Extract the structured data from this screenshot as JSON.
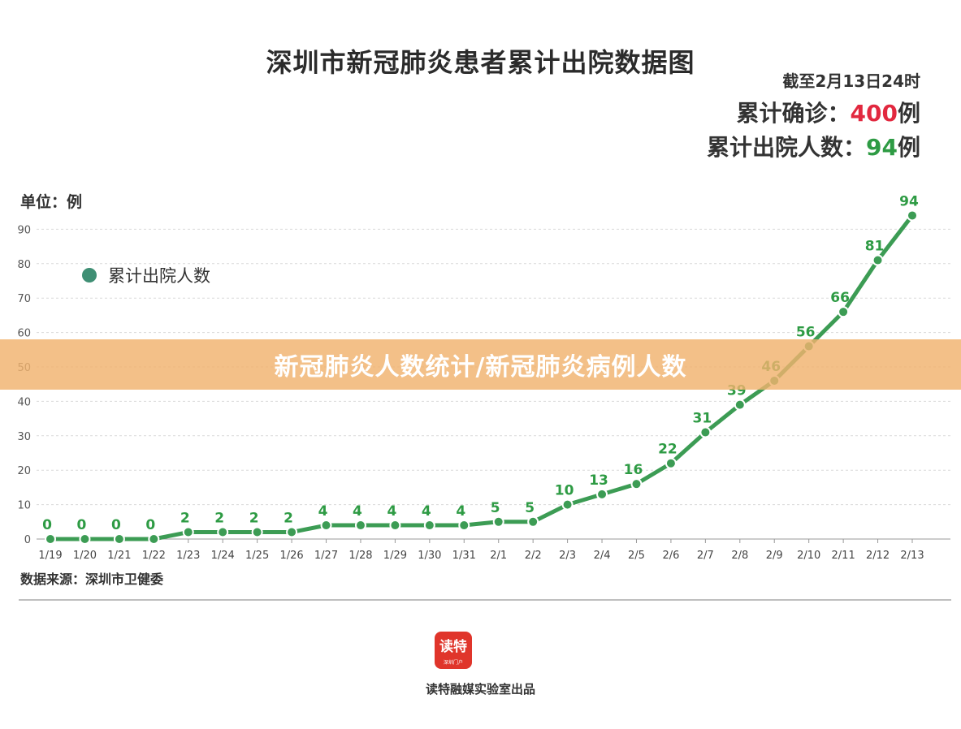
{
  "header": {
    "title": "深圳市新冠肺炎患者累计出院数据图",
    "as_of": "截至2月13日24时",
    "confirmed_label": "累计确诊：",
    "confirmed_value": "400",
    "confirmed_unit": "例",
    "discharged_label": "累计出院人数：",
    "discharged_value": "94",
    "discharged_unit": "例"
  },
  "unit_label": "单位：例",
  "source": "数据来源：深圳市卫健委",
  "logo": {
    "text": "读特",
    "subtext": "深圳门户"
  },
  "credit": "读特融媒实验室出品",
  "banner": "新冠肺炎人数统计/新冠肺炎病例人数",
  "colors": {
    "line": "#3c9c54",
    "legend_dot": "#3f8f74",
    "confirmed": "#e2283f",
    "discharged": "#2e9b44",
    "banner": "#f0b26e"
  },
  "chart_data": {
    "type": "line",
    "title": "深圳市新冠肺炎患者累计出院数据图",
    "ylabel": "单位：例",
    "x": [
      "1/19",
      "1/20",
      "1/21",
      "1/22",
      "1/23",
      "1/24",
      "1/25",
      "1/26",
      "1/27",
      "1/28",
      "1/29",
      "1/30",
      "1/31",
      "2/1",
      "2/2",
      "2/3",
      "2/4",
      "2/5",
      "2/6",
      "2/7",
      "2/8",
      "2/9",
      "2/10",
      "2/11",
      "2/12",
      "2/13"
    ],
    "series": [
      {
        "name": "累计出院人数",
        "values": [
          0,
          0,
          0,
          0,
          2,
          2,
          2,
          2,
          4,
          4,
          4,
          4,
          4,
          5,
          5,
          10,
          13,
          16,
          22,
          31,
          39,
          46,
          56,
          66,
          81,
          94
        ]
      }
    ],
    "yticks": [
      0,
      10,
      20,
      30,
      40,
      50,
      60,
      70,
      80,
      90
    ],
    "ylim": [
      0,
      95
    ],
    "grid": true,
    "legend": "top-left"
  }
}
